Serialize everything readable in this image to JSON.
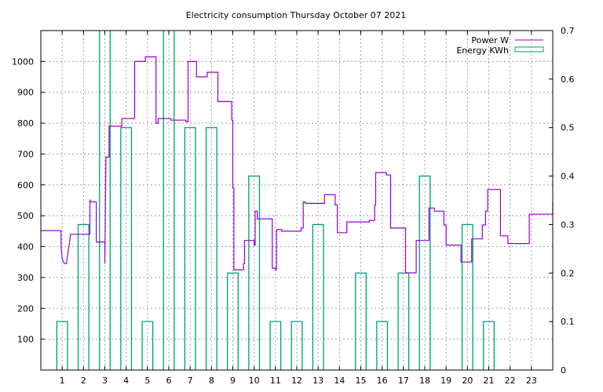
{
  "chart_data": {
    "type": "line",
    "title": "Electricity consumption Thursday October 07 2021",
    "grid": true,
    "legend_position": "top-right",
    "x_ticks": [
      1,
      2,
      3,
      4,
      5,
      6,
      7,
      8,
      9,
      10,
      11,
      12,
      13,
      14,
      15,
      16,
      17,
      18,
      19,
      20,
      21,
      22,
      23
    ],
    "xlim": [
      0,
      24
    ],
    "y_left": {
      "ticks": [
        100,
        200,
        300,
        400,
        500,
        600,
        700,
        800,
        900,
        1000
      ],
      "lim": [
        0,
        1100
      ]
    },
    "y_right": {
      "ticks": [
        0,
        0.1,
        0.2,
        0.3,
        0.4,
        0.5,
        0.6,
        0.7
      ],
      "lim": [
        0,
        0.7
      ]
    },
    "colors": {
      "power": "#9400d3",
      "energy": "#009e73",
      "grid": "#a0a0a0"
    },
    "series": [
      {
        "name": "Power W",
        "axis": "left",
        "style": "steps",
        "points": [
          [
            0,
            452
          ],
          [
            0.95,
            452
          ],
          [
            0.95,
            400
          ],
          [
            1.0,
            360
          ],
          [
            1.1,
            345
          ],
          [
            1.2,
            345
          ],
          [
            1.4,
            440
          ],
          [
            2.3,
            440
          ],
          [
            2.3,
            550
          ],
          [
            2.35,
            545
          ],
          [
            2.6,
            545
          ],
          [
            2.6,
            415
          ],
          [
            3.0,
            415
          ],
          [
            3.0,
            345
          ],
          [
            3.05,
            690
          ],
          [
            3.2,
            690
          ],
          [
            3.2,
            790
          ],
          [
            3.8,
            790
          ],
          [
            3.8,
            815
          ],
          [
            4.4,
            815
          ],
          [
            4.4,
            1000
          ],
          [
            4.9,
            1000
          ],
          [
            4.9,
            1015
          ],
          [
            5.4,
            1015
          ],
          [
            5.4,
            800
          ],
          [
            5.5,
            800
          ],
          [
            5.5,
            815
          ],
          [
            6.1,
            815
          ],
          [
            6.1,
            810
          ],
          [
            6.8,
            810
          ],
          [
            6.8,
            805
          ],
          [
            6.9,
            805
          ],
          [
            6.9,
            1000
          ],
          [
            7.3,
            1000
          ],
          [
            7.3,
            950
          ],
          [
            7.8,
            950
          ],
          [
            7.8,
            965
          ],
          [
            8.3,
            965
          ],
          [
            8.3,
            870
          ],
          [
            8.95,
            870
          ],
          [
            8.95,
            810
          ],
          [
            9.0,
            810
          ],
          [
            9.0,
            590
          ],
          [
            9.05,
            590
          ],
          [
            9.05,
            325
          ],
          [
            9.5,
            325
          ],
          [
            9.5,
            345
          ],
          [
            9.55,
            345
          ],
          [
            9.55,
            420
          ],
          [
            10.0,
            420
          ],
          [
            10.0,
            405
          ],
          [
            10.05,
            405
          ],
          [
            10.05,
            515
          ],
          [
            10.15,
            515
          ],
          [
            10.15,
            490
          ],
          [
            10.85,
            490
          ],
          [
            10.85,
            330
          ],
          [
            11.0,
            330
          ],
          [
            11.0,
            325
          ],
          [
            11.05,
            325
          ],
          [
            11.05,
            455
          ],
          [
            11.3,
            455
          ],
          [
            11.3,
            450
          ],
          [
            12.2,
            450
          ],
          [
            12.2,
            460
          ],
          [
            12.3,
            460
          ],
          [
            12.3,
            545
          ],
          [
            12.4,
            545
          ],
          [
            12.4,
            540
          ],
          [
            13.3,
            540
          ],
          [
            13.3,
            568
          ],
          [
            13.8,
            568
          ],
          [
            13.8,
            535
          ],
          [
            13.9,
            535
          ],
          [
            13.9,
            445
          ],
          [
            14.35,
            445
          ],
          [
            14.35,
            480
          ],
          [
            15.4,
            480
          ],
          [
            15.4,
            485
          ],
          [
            15.65,
            485
          ],
          [
            15.65,
            535
          ],
          [
            15.7,
            535
          ],
          [
            15.7,
            640
          ],
          [
            16.2,
            640
          ],
          [
            16.2,
            632
          ],
          [
            16.4,
            632
          ],
          [
            16.4,
            460
          ],
          [
            17.1,
            460
          ],
          [
            17.1,
            315
          ],
          [
            17.6,
            315
          ],
          [
            17.6,
            420
          ],
          [
            18.2,
            420
          ],
          [
            18.2,
            525
          ],
          [
            18.45,
            525
          ],
          [
            18.45,
            515
          ],
          [
            18.9,
            515
          ],
          [
            18.9,
            470
          ],
          [
            19.0,
            470
          ],
          [
            19.0,
            405
          ],
          [
            19.7,
            405
          ],
          [
            19.7,
            350
          ],
          [
            20.2,
            350
          ],
          [
            20.2,
            425
          ],
          [
            20.7,
            425
          ],
          [
            20.7,
            470
          ],
          [
            20.85,
            470
          ],
          [
            20.85,
            515
          ],
          [
            20.95,
            515
          ],
          [
            20.95,
            585
          ],
          [
            21.55,
            585
          ],
          [
            21.55,
            435
          ],
          [
            21.9,
            435
          ],
          [
            21.9,
            410
          ],
          [
            22.9,
            410
          ],
          [
            22.9,
            505
          ],
          [
            24.0,
            505
          ],
          [
            24.0,
            545
          ]
        ]
      },
      {
        "name": "Energy KWh",
        "axis": "right",
        "style": "boxes",
        "bars": [
          [
            1,
            0.1
          ],
          [
            2,
            0.3
          ],
          [
            3,
            0.8
          ],
          [
            4,
            0.5
          ],
          [
            5,
            0.1
          ],
          [
            6,
            0.8
          ],
          [
            7,
            0.5
          ],
          [
            8,
            0.5
          ],
          [
            9,
            0.2
          ],
          [
            10,
            0.4
          ],
          [
            11,
            0.1
          ],
          [
            12,
            0.1
          ],
          [
            13,
            0.3
          ],
          [
            15,
            0.2
          ],
          [
            16,
            0.1
          ],
          [
            17,
            0.2
          ],
          [
            18,
            0.4
          ],
          [
            20,
            0.3
          ],
          [
            21,
            0.1
          ]
        ],
        "overflow_bars": [
          [
            3,
            0.8
          ],
          [
            6,
            0.8
          ]
        ]
      }
    ]
  }
}
